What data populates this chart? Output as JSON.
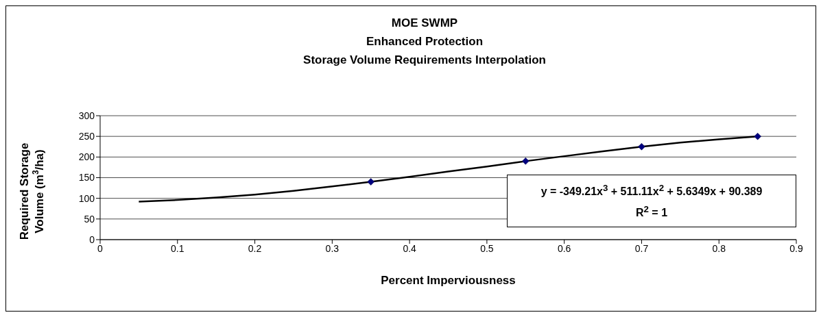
{
  "chart_data": {
    "type": "scatter",
    "title": "MOE SWMP\nEnhanced Protection\nStorage Volume Requirements Interpolation",
    "xlabel": "Percent Imperviousness",
    "ylabel": "Required Storage Volume (m$^{3}$/ha)",
    "series": [
      {
        "type": "line",
        "marker": "none",
        "color": "#000000",
        "x": [
          0.05,
          0.1,
          0.15,
          0.2,
          0.25,
          0.3,
          0.35,
          0.4,
          0.45,
          0.5,
          0.55,
          0.6,
          0.65,
          0.7,
          0.75,
          0.8,
          0.85
        ],
        "values": [
          92,
          96,
          102,
          109,
          118,
          129,
          140,
          152,
          165,
          177,
          190,
          202,
          214,
          225,
          235,
          243,
          250
        ]
      },
      {
        "marker": "diamond",
        "color": "#000080",
        "x": [
          0.35,
          0.55,
          0.7,
          0.85
        ],
        "values": [
          140,
          190,
          225,
          250
        ]
      }
    ],
    "xlim": [
      0,
      0.9
    ],
    "xticks": [
      0,
      0.1,
      0.2,
      0.3,
      0.4,
      0.5,
      0.6,
      0.7,
      0.8,
      0.9
    ],
    "ylim": [
      0,
      300
    ],
    "yticks": [
      0,
      50,
      100,
      150,
      200,
      250,
      300
    ],
    "grid": "y",
    "annotations": [
      "y = -349.21x$^{3}$ + 511.11x$^{2}$ + 5.6349x + 90.389",
      "R$^{2}$ = 1"
    ]
  }
}
